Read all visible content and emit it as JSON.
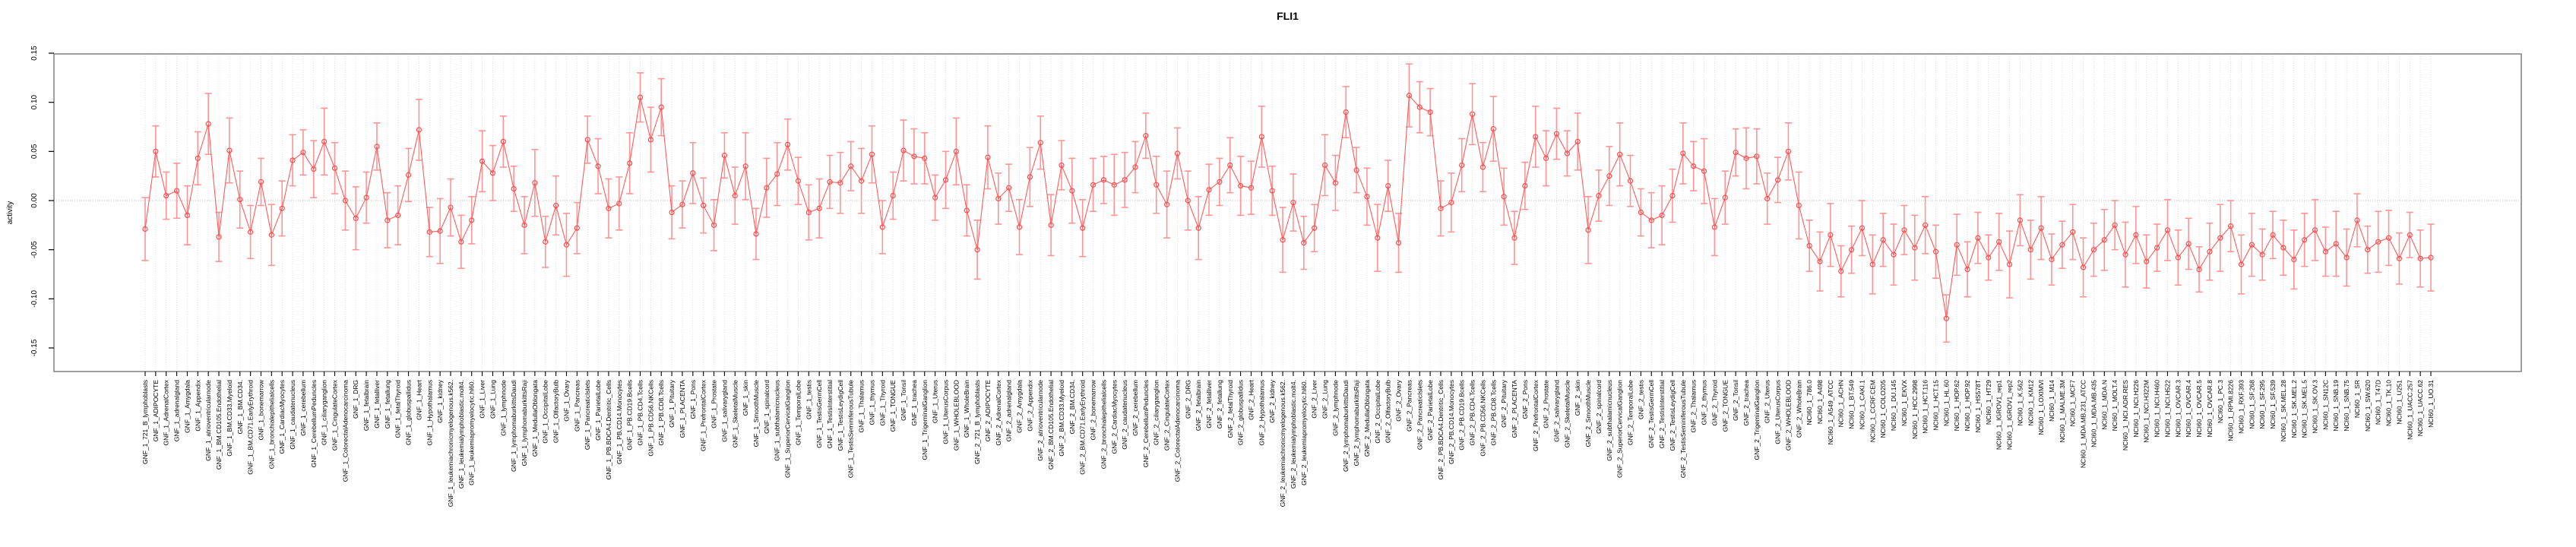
{
  "title": "FLI1",
  "chart_data": {
    "type": "line",
    "subtype": "points-with-error-bars",
    "title": "FLI1",
    "xlabel": "",
    "ylabel": "activity",
    "ylim": [
      -0.15,
      0.15
    ],
    "ytick_values": [
      0.15,
      0.1,
      0.05,
      0.0,
      -0.05,
      -0.1,
      -0.15
    ],
    "ytick_labels": [
      "0.15",
      "0.10",
      "0.05",
      "0.00",
      "-0.05",
      "-0.10",
      "-0.15"
    ],
    "grid": "vertical dotted gridline per category; dotted horizontal line at 0",
    "legend_position": "none",
    "point_style": "open-circle",
    "colors": {
      "point": "#ff4a4a",
      "line": "#ff5a5a",
      "error_bar": "#ff9494",
      "grid": "#dcdcdc",
      "zero_line": "#bbbbbb",
      "box": "#808080",
      "axis": "#000000"
    },
    "categories": [
      "GNF_1_721_B_lymphoblasts",
      "GNF_1_ADIPOCYTE",
      "GNF_1_AdrenalCortex",
      "GNF_1_adrenalgland",
      "GNF_1_Amygdala",
      "GNF_1_Appendix",
      "GNF_1_atrioventricularnode",
      "GNF_1_BM.CD105.Endothelial",
      "GNF_1_BM.CD33.Myeloid",
      "GNF_1_BM.CD34.",
      "GNF_1_BM.CD71.EarlyErythroid",
      "GNF_1_bonemarrow",
      "GNF_1_bronchialepithelialcells",
      "GNF_1_CardiacMyocytes",
      "GNF_1_caudatenucleus",
      "GNF_1_cerebellum",
      "GNF_1_CerebellumPeduncles",
      "GNF_1_ciliaryganglion",
      "GNF_1_CingulateCortex",
      "GNF_1_ColorectalAdenocarcinoma",
      "GNF_1_DRG",
      "GNF_1_fetalbrain",
      "GNF_1_fetalliver",
      "GNF_1_fetallung",
      "GNF_1_fetalThyroid",
      "GNF_1_globuspallidus",
      "GNF_1_Heart",
      "GNF_1_Hypothalamus",
      "GNF_1_kidney",
      "GNF_1_leukemiachronicmyelogenous.k562.",
      "GNF_1_leukemialymphoblastic.molt4.",
      "GNF_1_leukemiapromyelocytic.hl60.",
      "GNF_1_Liver",
      "GNF_1_Lung",
      "GNF_1_lymphnode",
      "GNF_1_lymphomaburkittsDaudi",
      "GNF_1_lymphomaburkittsRaji",
      "GNF_1_MedullaOblongata",
      "GNF_1_OccipitalLobe",
      "GNF_1_OlfactoryBulb",
      "GNF_1_Ovary",
      "GNF_1_Pancreas",
      "GNF_1_PancreaticIslets",
      "GNF_1_ParietalLobe",
      "GNF_1_PB.BDCA4.Dentritic_Cells",
      "GNF_1_PB.CD14.Monocytes",
      "GNF_1_PB.CD19.Bcells",
      "GNF_1_PB.CD4.Tcells",
      "GNF_1_PB.CD56.NKCells",
      "GNF_1_PB.CD8.Tcells",
      "GNF_1_Pituitary",
      "GNF_1_PLACENTA",
      "GNF_1_Pons",
      "GNF_1_PrefrontalCortex",
      "GNF_1_Prostate",
      "GNF_1_salivarygland",
      "GNF_1_SkeletalMuscle",
      "GNF_1_skin",
      "GNF_1_SmoothMuscle",
      "GNF_1_spinalcord",
      "GNF_1_subthalamicnucleus",
      "GNF_1_SuperiorCervicalGanglion",
      "GNF_1_TemporalLobe",
      "GNF_1_testis",
      "GNF_1_TestisGermCell",
      "GNF_1_TestisInterstitial",
      "GNF_1_TestisLeydigCell",
      "GNF_1_TestisSeminiferousTubule",
      "GNF_1_Thalamus",
      "GNF_1_thymus",
      "GNF_1_Thyroid",
      "GNF_1_TONGUE",
      "GNF_1_Tonsil",
      "GNF_1_trachea",
      "GNF_1_TrigeminalGanglion",
      "GNF_1_Uterus",
      "GNF_1_UterusCorpus",
      "GNF_1_WHOLEBLOOD",
      "GNF_1_WholeBrain",
      "GNF_2_721_B_lymphoblasts",
      "GNF_2_ADIPOCYTE",
      "GNF_2_AdrenalCortex",
      "GNF_2_adrenalgland",
      "GNF_2_Amygdala",
      "GNF_2_Appendix",
      "GNF_2_atrioventricularnode",
      "GNF_2_BM.CD105.Endothelial",
      "GNF_2_BM.CD33.Myeloid",
      "GNF_2_BM.CD34.",
      "GNF_2_BM.CD71.EarlyErythroid",
      "GNF_2_bonemarrow",
      "GNF_2_bronchialepithelialcells",
      "GNF_2_CardiacMyocytes",
      "GNF_2_caudatenucleus",
      "GNF_2_cerebellum",
      "GNF_2_CerebellumPeduncles",
      "GNF_2_ciliaryganglion",
      "GNF_2_CingulateCortex",
      "GNF_2_ColorectalAdenocarcinoma",
      "GNF_2_DRG",
      "GNF_2_fetalbrain",
      "GNF_2_fetalliver",
      "GNF_2_fetallung",
      "GNF_2_fetalThyroid",
      "GNF_2_globuspallidus",
      "GNF_2_Heart",
      "GNF_2_Hypothalamus",
      "GNF_2_kidney",
      "GNF_2_leukemiachronicmyelogenous.k562.",
      "GNF_2_leukemialymphoblastic.molt4.",
      "GNF_2_leukemiapromyelocytic.hl60.",
      "GNF_2_Liver",
      "GNF_2_Lung",
      "GNF_2_lymphnode",
      "GNF_2_lymphomaburkittsDaudi",
      "GNF_2_lymphomaburkittsRaji",
      "GNF_2_MedullaOblongata",
      "GNF_2_OccipitalLobe",
      "GNF_2_OlfactoryBulb",
      "GNF_2_Ovary",
      "GNF_2_Pancreas",
      "GNF_2_PancreaticIslets",
      "GNF_2_ParietalLobe",
      "GNF_2_PB.BDCA4.Dentritic_Cells",
      "GNF_2_PB.CD14.Monocytes",
      "GNF_2_PB.CD19.Bcells",
      "GNF_2_PB.CD4.Tcells",
      "GNF_2_PB.CD56.NKCells",
      "GNF_2_PB.CD8.Tcells",
      "GNF_2_Pituitary",
      "GNF_2_PLACENTA",
      "GNF_2_Pons",
      "GNF_2_PrefrontalCortex",
      "GNF_2_Prostate",
      "GNF_2_salivarygland",
      "GNF_2_SkeletalMuscle",
      "GNF_2_skin",
      "GNF_2_SmoothMuscle",
      "GNF_2_spinalcord",
      "GNF_2_subthalamicnucleus",
      "GNF_2_SuperiorCervicalGanglion",
      "GNF_2_TemporalLobe",
      "GNF_2_testis",
      "GNF_2_TestisGermCell",
      "GNF_2_TestisInterstitial",
      "GNF_2_TestisLeydigCell",
      "GNF_2_TestisSeminiferousTubule",
      "GNF_2_Thalamus",
      "GNF_2_thymus",
      "GNF_2_Thyroid",
      "GNF_2_TONGUE",
      "GNF_2_Tonsil",
      "GNF_2_trachea",
      "GNF_2_TrigeminalGanglion",
      "GNF_2_Uterus",
      "GNF_2_UterusCorpus",
      "GNF_2_WHOLEBLOOD",
      "GNF_2_WholeBrain",
      "NCI60_1_786.0",
      "NCI60_1_A498",
      "NCI60_1_A549_ATCC",
      "NCI60_1_ACHN",
      "NCI60_1_BT.549",
      "NCI60_1_CAKI.1",
      "NCI60_1_CCRF.CEM",
      "NCI60_1_COLO205",
      "NCI60_1_DU.145",
      "NCI60_1_EKVX",
      "NCI60_1_HCC.2998",
      "NCI60_1_HCT.116",
      "NCI60_1_HCT.15",
      "NCI60_1_HL.60",
      "NCI60_1_HOP.62",
      "NCI60_1_HOP.92",
      "NCI60_1_HS578T",
      "NCI60_1_HT29",
      "NCI60_1_IGROV1_rep1",
      "NCI60_1_IGROV1_rep2",
      "NCI60_1_K.562",
      "NCI60_1_KM12",
      "NCI60_1_LOXIMVI",
      "NCI60_1_M14",
      "NCI60_1_MALME.3M",
      "NCI60_1_MCF7",
      "NCI60_1_MDA.MB.231_ATCC",
      "NCI60_1_MDA.MB.435",
      "NCI60_1_MDA.N",
      "NCI60_1_MOLT.4",
      "NCI60_1_NCI.ADR.RES",
      "NCI60_1_NCI.H226",
      "NCI60_1_NCI.H322M",
      "NCI60_1_NCI.H460",
      "NCI60_1_NCI.H522",
      "NCI60_1_OVCAR.3",
      "NCI60_1_OVCAR.4",
      "NCI60_1_OVCAR.5",
      "NCI60_1_OVCAR.8",
      "NCI60_1_PC.3",
      "NCI60_1_RPMI.8226",
      "NCI60_1_RXF.393",
      "NCI60_1_SF.268",
      "NCI60_1_SF.295",
      "NCI60_1_SF.539",
      "NCI60_1_SK.MEL.28",
      "NCI60_1_SK.MEL.2",
      "NCI60_1_SK.MEL.5",
      "NCI60_1_SK.OV.3",
      "NCI60_1_SN12C",
      "NCI60_1_SNB.19",
      "NCI60_1_SNB.75",
      "NCI60_1_SR",
      "NCI60_1_SW.620",
      "NCI60_1_T47D",
      "NCI60_1_TK.10",
      "NCI60_1_U251",
      "NCI60_1_UACC.257",
      "NCI60_1_UACC.62",
      "NCI60_1_UO.31"
    ],
    "values": [
      -0.029,
      0.05,
      0.005,
      0.01,
      -0.015,
      0.043,
      0.078,
      -0.037,
      0.051,
      0.001,
      -0.032,
      0.019,
      -0.035,
      -0.008,
      0.041,
      0.049,
      0.032,
      0.06,
      0.033,
      0.0,
      -0.018,
      0.003,
      0.055,
      -0.02,
      -0.015,
      0.026,
      0.072,
      -0.032,
      -0.031,
      -0.007,
      -0.042,
      -0.02,
      0.04,
      0.028,
      0.06,
      0.012,
      -0.025,
      0.018,
      -0.042,
      -0.005,
      -0.045,
      -0.028,
      0.062,
      0.035,
      -0.008,
      -0.003,
      0.038,
      0.105,
      0.062,
      0.095,
      -0.012,
      -0.004,
      0.028,
      -0.005,
      -0.025,
      0.046,
      0.005,
      0.035,
      -0.034,
      0.013,
      0.027,
      0.057,
      0.02,
      -0.012,
      -0.008,
      0.019,
      0.018,
      0.035,
      0.02,
      0.047,
      -0.027,
      0.005,
      0.051,
      0.045,
      0.043,
      0.003,
      0.021,
      0.05,
      -0.01,
      -0.05,
      0.044,
      0.002,
      0.013,
      -0.027,
      0.024,
      0.059,
      -0.025,
      0.036,
      0.01,
      -0.028,
      0.016,
      0.021,
      0.016,
      0.021,
      0.034,
      0.066,
      0.016,
      -0.004,
      0.048,
      0.0,
      -0.028,
      0.011,
      0.019,
      0.036,
      0.015,
      0.013,
      0.065,
      0.01,
      -0.04,
      -0.002,
      -0.043,
      -0.028,
      0.036,
      0.018,
      0.09,
      0.031,
      0.004,
      -0.038,
      0.015,
      -0.043,
      0.107,
      0.095,
      0.09,
      -0.008,
      -0.002,
      0.036,
      0.088,
      0.034,
      0.073,
      0.004,
      -0.038,
      0.015,
      0.065,
      0.043,
      0.068,
      0.048,
      0.06,
      -0.03,
      0.005,
      0.025,
      0.047,
      0.02,
      -0.012,
      -0.02,
      -0.015,
      0.005,
      0.048,
      0.035,
      0.03,
      -0.027,
      0.003,
      0.049,
      0.043,
      0.045,
      0.002,
      0.021,
      0.05,
      -0.005,
      -0.046,
      -0.062,
      -0.035,
      -0.072,
      -0.05,
      -0.028,
      -0.065,
      -0.04,
      -0.055,
      -0.03,
      -0.048,
      -0.025,
      -0.052,
      -0.12,
      -0.045,
      -0.07,
      -0.038,
      -0.058,
      -0.042,
      -0.065,
      -0.02,
      -0.05,
      -0.028,
      -0.06,
      -0.045,
      -0.032,
      -0.068,
      -0.05,
      -0.04,
      -0.025,
      -0.055,
      -0.035,
      -0.062,
      -0.048,
      -0.03,
      -0.058,
      -0.044,
      -0.07,
      -0.052,
      -0.038,
      -0.026,
      -0.065,
      -0.045,
      -0.055,
      -0.035,
      -0.048,
      -0.06,
      -0.04,
      -0.03,
      -0.052,
      -0.044,
      -0.058,
      -0.02,
      -0.05,
      -0.042,
      -0.038,
      -0.059,
      -0.035,
      -0.059,
      -0.058
    ],
    "errors": [
      0.032,
      0.026,
      0.024,
      0.028,
      0.03,
      0.027,
      0.031,
      0.025,
      0.033,
      0.029,
      0.027,
      0.024,
      0.031,
      0.028,
      0.026,
      0.023,
      0.029,
      0.034,
      0.026,
      0.03,
      0.032,
      0.026,
      0.024,
      0.028,
      0.03,
      0.027,
      0.031,
      0.025,
      0.033,
      0.029,
      0.027,
      0.024,
      0.031,
      0.028,
      0.026,
      0.023,
      0.029,
      0.034,
      0.026,
      0.03,
      0.032,
      0.026,
      0.024,
      0.028,
      0.03,
      0.027,
      0.031,
      0.025,
      0.033,
      0.029,
      0.027,
      0.024,
      0.031,
      0.028,
      0.026,
      0.023,
      0.029,
      0.034,
      0.026,
      0.03,
      0.032,
      0.026,
      0.024,
      0.028,
      0.03,
      0.027,
      0.031,
      0.025,
      0.033,
      0.029,
      0.027,
      0.024,
      0.031,
      0.028,
      0.026,
      0.023,
      0.029,
      0.034,
      0.026,
      0.03,
      0.032,
      0.026,
      0.024,
      0.028,
      0.03,
      0.027,
      0.031,
      0.025,
      0.033,
      0.029,
      0.027,
      0.024,
      0.031,
      0.028,
      0.026,
      0.023,
      0.029,
      0.034,
      0.026,
      0.03,
      0.032,
      0.026,
      0.024,
      0.028,
      0.03,
      0.027,
      0.031,
      0.025,
      0.033,
      0.029,
      0.027,
      0.024,
      0.031,
      0.028,
      0.026,
      0.023,
      0.029,
      0.034,
      0.026,
      0.03,
      0.032,
      0.026,
      0.024,
      0.028,
      0.03,
      0.027,
      0.031,
      0.025,
      0.033,
      0.029,
      0.027,
      0.024,
      0.031,
      0.028,
      0.026,
      0.023,
      0.029,
      0.034,
      0.026,
      0.03,
      0.032,
      0.026,
      0.024,
      0.028,
      0.03,
      0.027,
      0.031,
      0.025,
      0.033,
      0.029,
      0.027,
      0.024,
      0.031,
      0.028,
      0.026,
      0.023,
      0.029,
      0.034,
      0.026,
      0.03,
      0.032,
      0.026,
      0.024,
      0.028,
      0.03,
      0.027,
      0.031,
      0.025,
      0.033,
      0.029,
      0.027,
      0.024,
      0.031,
      0.028,
      0.026,
      0.023,
      0.029,
      0.034,
      0.026,
      0.03,
      0.032,
      0.026,
      0.024,
      0.028,
      0.03,
      0.027,
      0.031,
      0.025,
      0.033,
      0.029,
      0.027,
      0.024,
      0.031,
      0.028,
      0.026,
      0.023,
      0.029,
      0.034,
      0.026,
      0.03,
      0.032,
      0.026,
      0.024,
      0.028,
      0.03,
      0.027,
      0.031,
      0.025,
      0.033,
      0.029,
      0.027,
      0.024,
      0.031,
      0.028,
      0.026,
      0.023,
      0.029,
      0.034
    ]
  },
  "layout_note": "R-style plot: vertical x tick labels, vertical y tick labels, open circle points with pale-red confidence bars"
}
